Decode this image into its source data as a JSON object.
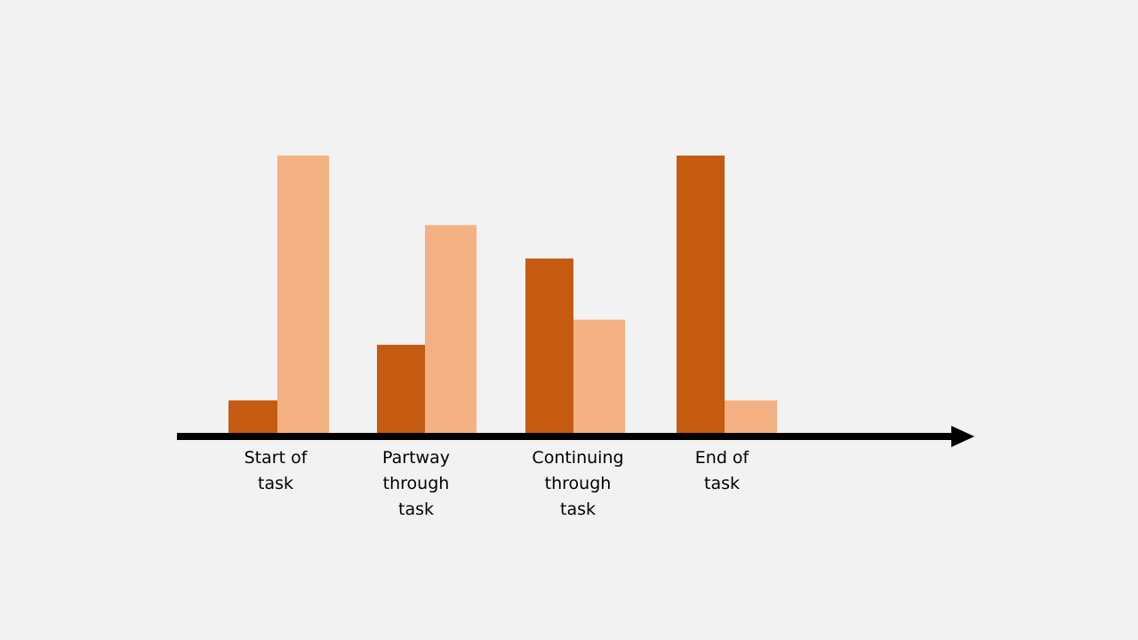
{
  "chart_data": {
    "type": "bar",
    "title": "",
    "xlabel": "",
    "ylabel": "",
    "categories": [
      "Start of\ntask",
      "Partway\nthrough\ntask",
      "Continuing\nthrough\ntask",
      "End of\ntask"
    ],
    "series": [
      {
        "values": [
          12,
          32,
          63,
          100
        ],
        "color": "#c55a11"
      },
      {
        "values": [
          100,
          75,
          41,
          12
        ],
        "color": "#f4b183"
      }
    ],
    "ylim": [
      0,
      100
    ],
    "grid": false,
    "axis_arrow": true,
    "axis_color": "#000000",
    "background": "#f2f2f2"
  }
}
